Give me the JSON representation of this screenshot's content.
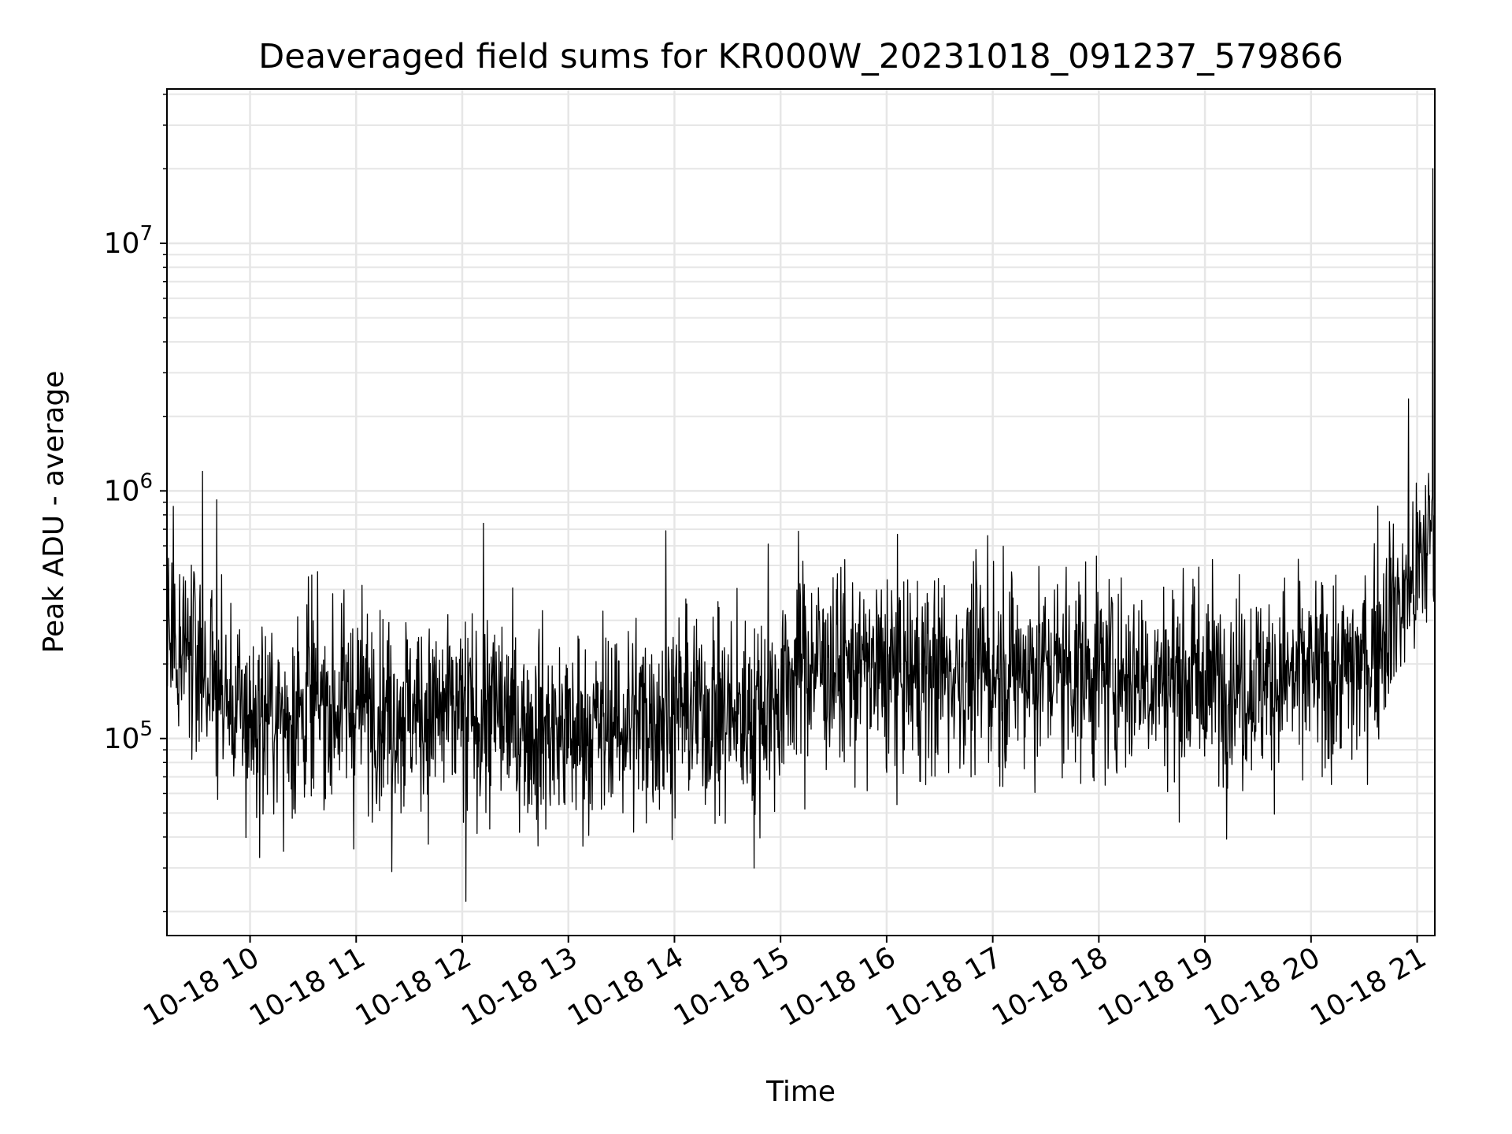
{
  "chart_data": {
    "type": "line",
    "title": "Deaveraged field sums for KR000W_20231018_091237_579866",
    "xlabel": "Time",
    "ylabel": "Peak ADU - average",
    "yscale": "log",
    "grid": true,
    "xlim": [
      "2023-10-18 09:13",
      "2023-10-18 21:10"
    ],
    "ylim": [
      16000,
      42000000
    ],
    "x_ticks": [
      "10-18 10",
      "10-18 11",
      "10-18 12",
      "10-18 13",
      "10-18 14",
      "10-18 15",
      "10-18 16",
      "10-18 17",
      "10-18 18",
      "10-18 19",
      "10-18 20",
      "10-18 21"
    ],
    "y_ticks": [
      {
        "base": "10",
        "exp": "5",
        "value": 100000
      },
      {
        "base": "10",
        "exp": "6",
        "value": 1000000
      },
      {
        "base": "10",
        "exp": "7",
        "value": 10000000
      }
    ],
    "line_color": "#000000",
    "series": [
      {
        "x": [
          "09:13",
          "09:20",
          "09:30",
          "09:40",
          "09:50",
          "10:00",
          "10:15",
          "10:30",
          "10:45",
          "11:00",
          "11:15",
          "11:30",
          "11:45",
          "12:00",
          "12:10",
          "12:20",
          "12:30",
          "12:45",
          "13:00",
          "13:15",
          "13:30",
          "13:45",
          "14:00",
          "14:15",
          "14:30",
          "14:45",
          "15:00",
          "15:10",
          "15:20",
          "15:30",
          "15:45",
          "16:00",
          "16:15",
          "16:30",
          "16:45",
          "17:00",
          "17:15",
          "17:30",
          "17:45",
          "18:00",
          "18:15",
          "18:30",
          "18:45",
          "19:00",
          "19:15",
          "19:30",
          "19:45",
          "20:00",
          "20:15",
          "20:30",
          "20:45",
          "20:55",
          "21:00",
          "21:05",
          "21:10"
        ],
        "y": [
          300000,
          260000,
          220000,
          160000,
          130000,
          120000,
          125000,
          130000,
          135000,
          140000,
          135000,
          130000,
          125000,
          125000,
          120000,
          125000,
          115000,
          110000,
          105000,
          110000,
          115000,
          125000,
          135000,
          130000,
          125000,
          130000,
          145000,
          210000,
          200000,
          195000,
          190000,
          185000,
          180000,
          185000,
          185000,
          190000,
          190000,
          195000,
          190000,
          185000,
          180000,
          180000,
          175000,
          175000,
          170000,
          170000,
          175000,
          180000,
          180000,
          200000,
          330000,
          380000,
          450000,
          600000,
          800000
        ],
        "spikes": [
          {
            "x": "09:33",
            "y": 1200000
          },
          {
            "x": "09:41",
            "y": 920000
          },
          {
            "x": "10:19",
            "y": 35000
          },
          {
            "x": "10:33",
            "y": 450000
          },
          {
            "x": "11:20",
            "y": 29000
          },
          {
            "x": "12:02",
            "y": 22000
          },
          {
            "x": "12:12",
            "y": 740000
          },
          {
            "x": "13:55",
            "y": 690000
          },
          {
            "x": "14:45",
            "y": 30000
          },
          {
            "x": "14:53",
            "y": 610000
          },
          {
            "x": "16:57",
            "y": 660000
          },
          {
            "x": "20:55",
            "y": 2350000
          },
          {
            "x": "21:09",
            "y": 20000000
          }
        ]
      }
    ]
  }
}
